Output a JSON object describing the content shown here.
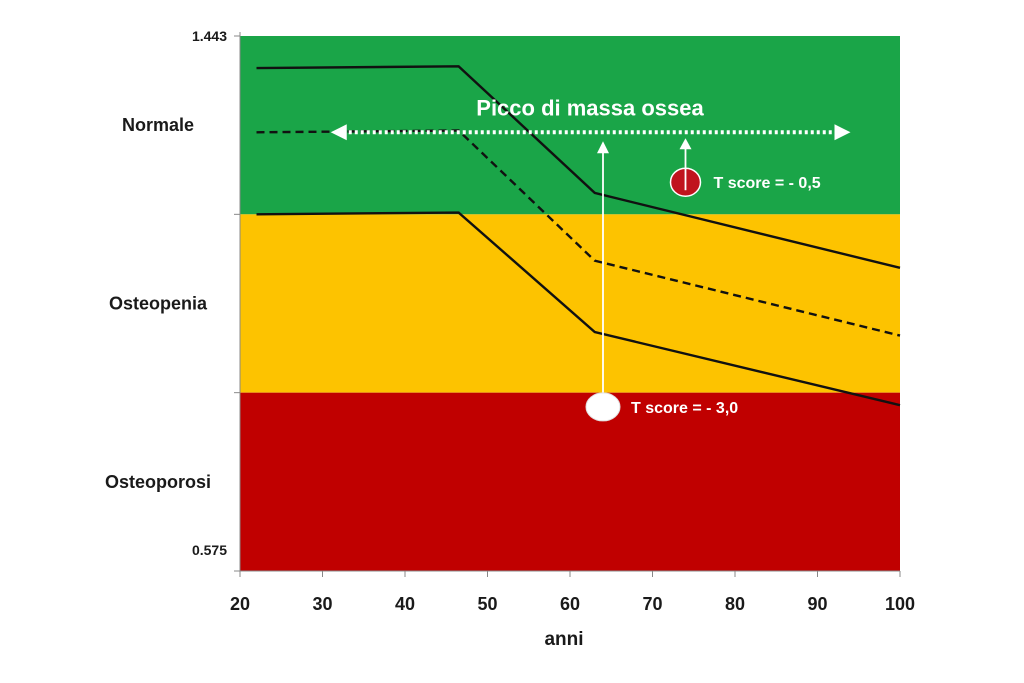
{
  "chart_data": {
    "type": "line",
    "xlabel": "anni",
    "x_ticks": [
      20,
      30,
      40,
      50,
      60,
      70,
      80,
      90,
      100
    ],
    "xlim": [
      20,
      100
    ],
    "ylim": [
      0,
      3
    ],
    "y_tick_labels": {
      "top": "1.443",
      "bottom": "0.575"
    },
    "zones": [
      {
        "name": "Normale",
        "range": [
          2,
          3
        ],
        "color": "#1aa548"
      },
      {
        "name": "Osteopenia",
        "range": [
          1,
          2
        ],
        "color": "#fdc300"
      },
      {
        "name": "Osteoporosi",
        "range": [
          0,
          1
        ],
        "color": "#c00000"
      }
    ],
    "series": [
      {
        "style": "solid",
        "x": [
          22,
          46.5,
          63,
          100
        ],
        "y": [
          2.82,
          2.83,
          2.12,
          1.7
        ]
      },
      {
        "style": "dashed",
        "x": [
          22,
          46.5,
          63,
          100
        ],
        "y": [
          2.46,
          2.47,
          1.74,
          1.32
        ]
      },
      {
        "style": "solid",
        "x": [
          22,
          46.5,
          63,
          100
        ],
        "y": [
          2.0,
          2.01,
          1.34,
          0.93
        ]
      }
    ],
    "annotations": {
      "peak_label": "Picco di massa ossea",
      "peak_arrow": {
        "x_from": 31,
        "x_to": 94,
        "y": 2.46
      },
      "t_score_high": {
        "label": "T score = - 0,5",
        "x": 74,
        "y": 2.18
      },
      "t_score_low": {
        "label": "T score = - 3,0",
        "x": 64,
        "y": 0.92
      }
    },
    "grid": false,
    "legend": "none"
  }
}
